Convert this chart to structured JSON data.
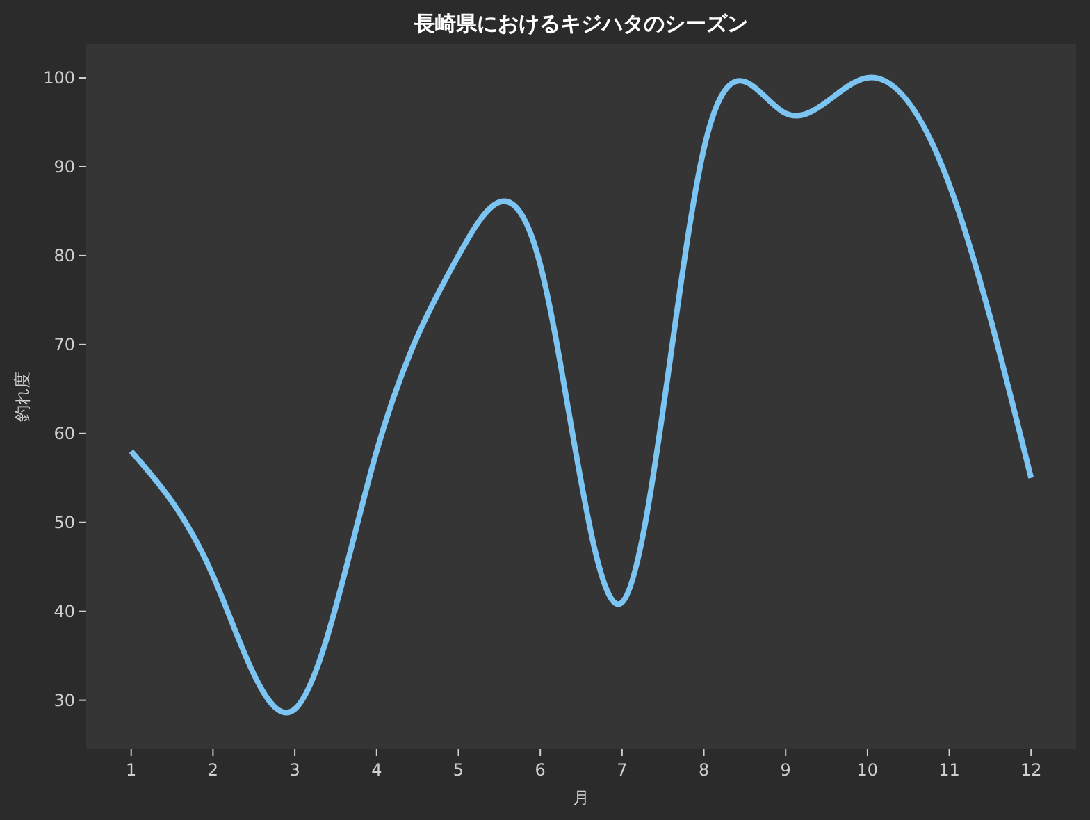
{
  "chart_data": {
    "type": "line",
    "title": "長崎県におけるキジハタのシーズン",
    "xlabel": "月",
    "ylabel": "釣れ度",
    "x": [
      1,
      2,
      3,
      4,
      5,
      6,
      7,
      8,
      9,
      10,
      11,
      12
    ],
    "series": [
      {
        "color": "#7cc4f2",
        "values": [
          58,
          44,
          29,
          58,
          80,
          79,
          41,
          92,
          96,
          100,
          88,
          55
        ]
      }
    ],
    "xlim": [
      0.45,
      12.55
    ],
    "xticks": [
      1,
      2,
      3,
      4,
      5,
      6,
      7,
      8,
      9,
      10,
      11,
      12
    ],
    "ylim": [
      24.5,
      103.75
    ],
    "yticks": [
      30,
      40,
      50,
      60,
      70,
      80,
      90,
      100
    ]
  }
}
